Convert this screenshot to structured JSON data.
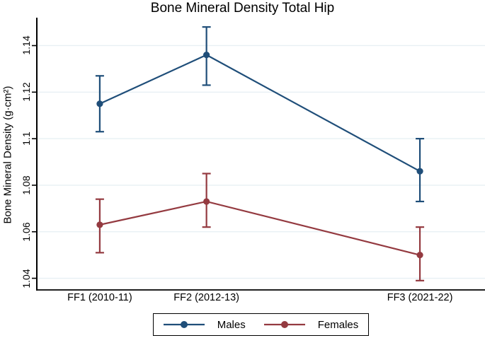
{
  "figure": {
    "title": "Bone Mineral Density Total Hip"
  },
  "chart_data": {
    "type": "line",
    "title": "Bone Mineral Density Total Hip",
    "xlabel": "",
    "ylabel": "Bone Mineral Density (g·cm²)",
    "categories": [
      "FF1 (2010-11)",
      "FF2 (2012-13)",
      "FF3 (2021-22)"
    ],
    "x": [
      1,
      2,
      4
    ],
    "xlim": [
      0.41,
      4.61
    ],
    "ylim": [
      1.035,
      1.152
    ],
    "yticks": [
      1.04,
      1.06,
      1.08,
      1.1,
      1.12,
      1.14
    ],
    "ytick_labels": [
      "1.04",
      "1.06",
      "1.08",
      "1.1",
      "1.12",
      "1.14"
    ],
    "grid": "horizontal-only",
    "legend_position": "bottom-center-boxed",
    "error_bars": "95% CI caps",
    "series": [
      {
        "name": "Males",
        "color": "#1f4e79",
        "values": [
          1.115,
          1.136,
          1.086
        ],
        "ci_low": [
          1.103,
          1.123,
          1.073
        ],
        "ci_high": [
          1.127,
          1.148,
          1.1
        ]
      },
      {
        "name": "Females",
        "color": "#943a40",
        "values": [
          1.063,
          1.073,
          1.05
        ],
        "ci_low": [
          1.051,
          1.062,
          1.039
        ],
        "ci_high": [
          1.074,
          1.085,
          1.062
        ]
      }
    ],
    "colors": {
      "gridline": "#e8f0f4",
      "axis": "#000000",
      "background": "#ffffff"
    }
  }
}
